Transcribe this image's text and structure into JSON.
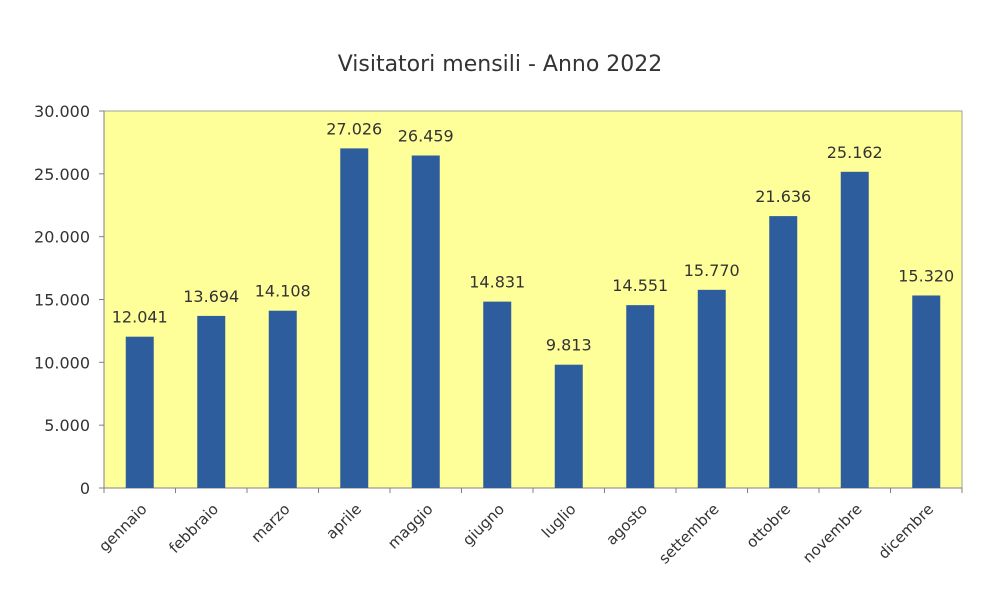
{
  "chart_data": {
    "type": "bar",
    "title": "Visitatori mensili - Anno 2022",
    "xlabel": "",
    "ylabel": "",
    "categories": [
      "gennaio",
      "febbraio",
      "marzo",
      "aprile",
      "maggio",
      "giugno",
      "luglio",
      "agosto",
      "settembre",
      "ottobre",
      "novembre",
      "dicembre"
    ],
    "values": [
      12041,
      13694,
      14108,
      27026,
      26459,
      14831,
      9813,
      14551,
      15770,
      21636,
      25162,
      15320
    ],
    "value_labels": [
      "12.041",
      "13.694",
      "14.108",
      "27.026",
      "26.459",
      "14.831",
      "9.813",
      "14.551",
      "15.770",
      "21.636",
      "25.162",
      "15.320"
    ],
    "ylim": [
      0,
      30000
    ],
    "yticks": [
      0,
      5000,
      10000,
      15000,
      20000,
      25000,
      30000
    ],
    "ytick_labels": [
      "0",
      "5.000",
      "10.000",
      "15.000",
      "20.000",
      "25.000",
      "30.000"
    ],
    "grid": false,
    "legend": "none",
    "colors": {
      "bar": "#2E5D9E",
      "plot_background": "#FFFF99",
      "plot_border": "#A0A0A0",
      "text": "#333333"
    }
  }
}
